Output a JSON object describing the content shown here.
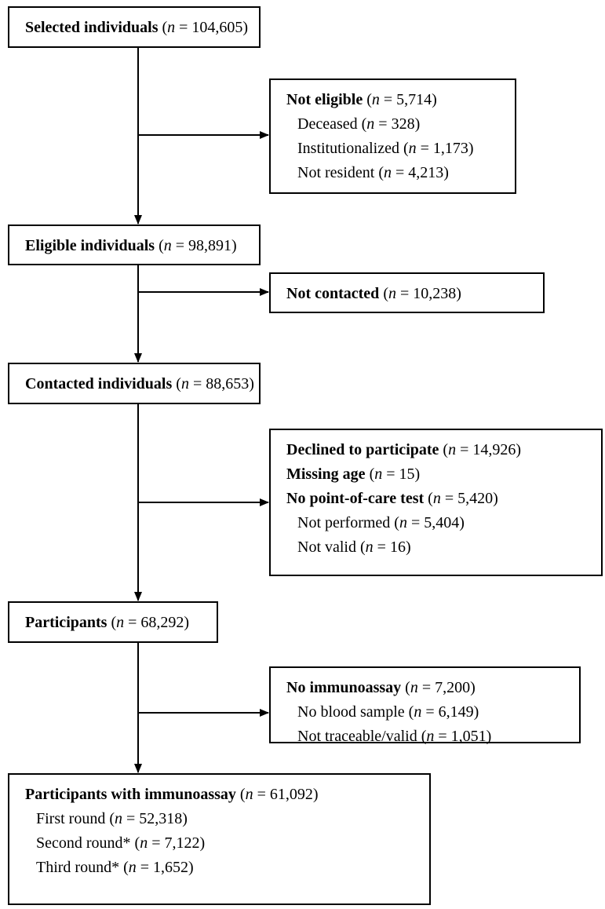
{
  "boxes": [
    {
      "lines": [
        {
          "label": "Selected individuals",
          "style": "bold",
          "level": 1,
          "paren": " (",
          "symbol": "n",
          "count": " = 104,605)"
        }
      ]
    },
    {
      "lines": [
        {
          "label": "Not eligible",
          "style": "bold",
          "level": 1,
          "paren": " (",
          "symbol": "n",
          "count": " = 5,714)"
        },
        {
          "label": "Deceased",
          "style": "normal",
          "level": 2,
          "paren": " (",
          "symbol": "n",
          "count": " = 328)"
        },
        {
          "label": "Institutionalized",
          "style": "normal",
          "level": 2,
          "paren": " (",
          "symbol": "n",
          "count": " = 1,173)"
        },
        {
          "label": "Not resident",
          "style": "normal",
          "level": 2,
          "paren": " (",
          "symbol": "n",
          "count": " = 4,213)"
        }
      ]
    },
    {
      "lines": [
        {
          "label": "Eligible individuals",
          "style": "bold",
          "level": 1,
          "paren": " (",
          "symbol": "n",
          "count": " = 98,891)"
        }
      ]
    },
    {
      "lines": [
        {
          "label": "Not contacted",
          "style": "bold",
          "level": 1,
          "paren": " (",
          "symbol": "n",
          "count": " = 10,238)"
        }
      ]
    },
    {
      "lines": [
        {
          "label": "Contacted individuals",
          "style": "bold",
          "level": 1,
          "paren": " (",
          "symbol": "n",
          "count": " = 88,653)"
        }
      ]
    },
    {
      "lines": [
        {
          "label": "Declined to participate",
          "style": "bold",
          "level": 1,
          "paren": " (",
          "symbol": "n",
          "count": " = 14,926)"
        },
        {
          "label": "Missing age",
          "style": "bold",
          "level": 1,
          "paren": " (",
          "symbol": "n",
          "count": " = 15)"
        },
        {
          "label": "No point-of-care test",
          "style": "bold",
          "level": 1,
          "paren": " (",
          "symbol": "n",
          "count": " = 5,420)"
        },
        {
          "label": "Not performed",
          "style": "normal",
          "level": 2,
          "paren": " (",
          "symbol": "n",
          "count": " = 5,404)"
        },
        {
          "label": "Not valid",
          "style": "normal",
          "level": 2,
          "paren": " (",
          "symbol": "n",
          "count": " = 16)"
        }
      ]
    },
    {
      "lines": [
        {
          "label": "Participants",
          "style": "bold",
          "level": 1,
          "paren": " (",
          "symbol": "n",
          "count": " = 68,292)"
        }
      ]
    },
    {
      "lines": [
        {
          "label": "No immunoassay",
          "style": "bold",
          "level": 1,
          "paren": " (",
          "symbol": "n",
          "count": " = 7,200)"
        },
        {
          "label": "No blood sample",
          "style": "normal",
          "level": 2,
          "paren": " (",
          "symbol": "n",
          "count": " = 6,149)"
        },
        {
          "label": "Not traceable/valid",
          "style": "normal",
          "level": 2,
          "paren": " (",
          "symbol": "n",
          "count": " = 1,051)"
        }
      ]
    },
    {
      "lines": [
        {
          "label": "Participants with immunoassay",
          "style": "bold",
          "level": 1,
          "paren": " (",
          "symbol": "n",
          "count": " = 61,092)"
        },
        {
          "label": "First round",
          "style": "normal",
          "level": 2,
          "paren": " (",
          "symbol": "n",
          "count": " = 52,318)"
        },
        {
          "label": "Second round*",
          "style": "normal",
          "level": 2,
          "paren": " (",
          "symbol": "n",
          "count": " = 7,122)"
        },
        {
          "label": "Third round*",
          "style": "normal",
          "level": 2,
          "paren": " (",
          "symbol": "n",
          "count": " = 1,652)"
        }
      ]
    }
  ]
}
